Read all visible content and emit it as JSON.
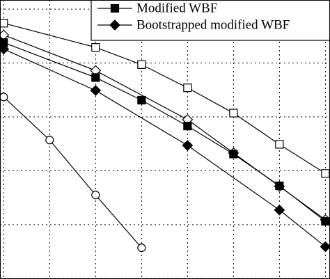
{
  "chart_data": {
    "type": "line",
    "log_scale": false,
    "grid": true,
    "legend": "upper right",
    "xlim": [
      0.92,
      8.1
    ],
    "xticks": [
      1,
      2,
      3,
      4,
      5,
      6,
      7,
      8
    ],
    "ylim": [
      -5.01,
      0.17
    ],
    "yticks": [
      -5,
      -4,
      -3,
      -2,
      -1,
      0
    ],
    "series": [
      {
        "color": "#000000",
        "marker": "open-square",
        "x": [
          1,
          3,
          4,
          5,
          6,
          7,
          8
        ],
        "values": [
          -0.26,
          -0.71,
          -1.03,
          -1.46,
          -1.93,
          -2.51,
          -3.05
        ]
      },
      {
        "color": "#000000",
        "marker": "open-diamond",
        "x": [
          1,
          3,
          5,
          6,
          7,
          8
        ],
        "values": [
          -0.48,
          -1.14,
          -2.05,
          -2.67,
          -3.29,
          -3.91
        ]
      },
      {
        "name": "Modified WBF",
        "color": "#000000",
        "marker": "filled-square",
        "x": [
          1,
          3,
          4,
          5,
          6,
          7,
          8
        ],
        "values": [
          -0.62,
          -1.27,
          -1.69,
          -2.17,
          -2.69,
          -3.28,
          -3.94
        ]
      },
      {
        "name": "Bootstrapped modified WBF",
        "color": "#000000",
        "marker": "filled-diamond",
        "x": [
          1,
          3,
          5,
          7,
          8
        ],
        "values": [
          -0.74,
          -1.51,
          -2.53,
          -3.73,
          -4.41
        ]
      },
      {
        "color": "#000000",
        "marker": "open-circle",
        "x": [
          1,
          2,
          3,
          4
        ],
        "values": [
          -1.63,
          -2.43,
          -3.45,
          -4.43
        ]
      }
    ]
  }
}
